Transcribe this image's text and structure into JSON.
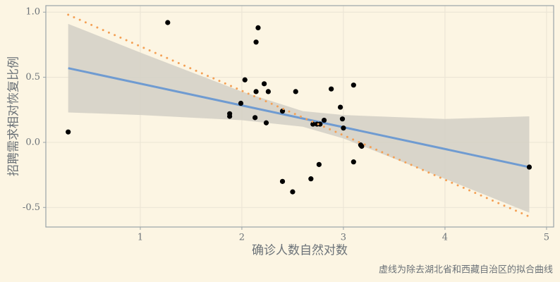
{
  "chart_data": {
    "type": "scatter",
    "x_label": "确诊人数自然对数",
    "y_label": "招聘需求相对恢复比例",
    "caption": "虚线为除去湖北省和西藏自治区的拟合曲线",
    "xlim": [
      0.07,
      5.07
    ],
    "ylim": [
      -0.65,
      1.05
    ],
    "xticks": [
      1,
      2,
      3,
      4,
      5
    ],
    "yticks": [
      {
        "value": 1,
        "label": "1.0"
      },
      0.5,
      {
        "value": 0,
        "label": "0.0"
      },
      -0.5
    ],
    "grid": true,
    "points": {
      "color": "#000000",
      "x": [
        0.29,
        1.27,
        2.16,
        2.14,
        2.03,
        2.22,
        2.14,
        2.26,
        2.53,
        2.88,
        3.1,
        1.99,
        1.88,
        1.88,
        2.13,
        2.24,
        2.4,
        2.97,
        2.99,
        3.0,
        2.81,
        2.7,
        2.74,
        2.77,
        3.17,
        3.18,
        2.76,
        3.1,
        2.68,
        2.4,
        2.5,
        4.83
      ],
      "y": [
        0.08,
        0.92,
        0.88,
        0.77,
        0.48,
        0.45,
        0.39,
        0.39,
        0.39,
        0.41,
        0.44,
        0.3,
        0.22,
        0.2,
        0.19,
        0.15,
        0.24,
        0.27,
        0.18,
        0.11,
        0.17,
        0.14,
        0.14,
        0.14,
        -0.02,
        -0.03,
        -0.17,
        -0.15,
        -0.28,
        -0.3,
        -0.38,
        -0.19
      ]
    },
    "band": {
      "color": "#d5d1c6",
      "x": [
        0.29,
        1,
        2,
        2.6,
        3,
        4,
        4.83
      ],
      "upper": [
        0.91,
        0.69,
        0.39,
        0.24,
        0.21,
        0.18,
        0.2
      ],
      "lower": [
        0.23,
        0.21,
        0.17,
        0.12,
        0.03,
        -0.28,
        -0.54
      ]
    },
    "fit_line": {
      "color": "#6f9bd1",
      "x": [
        0.29,
        4.83
      ],
      "y": [
        0.57,
        -0.19
      ]
    },
    "reference_line": {
      "color": "#f4a055",
      "x": [
        0.29,
        4.83
      ],
      "y": [
        0.98,
        -0.57
      ]
    }
  }
}
